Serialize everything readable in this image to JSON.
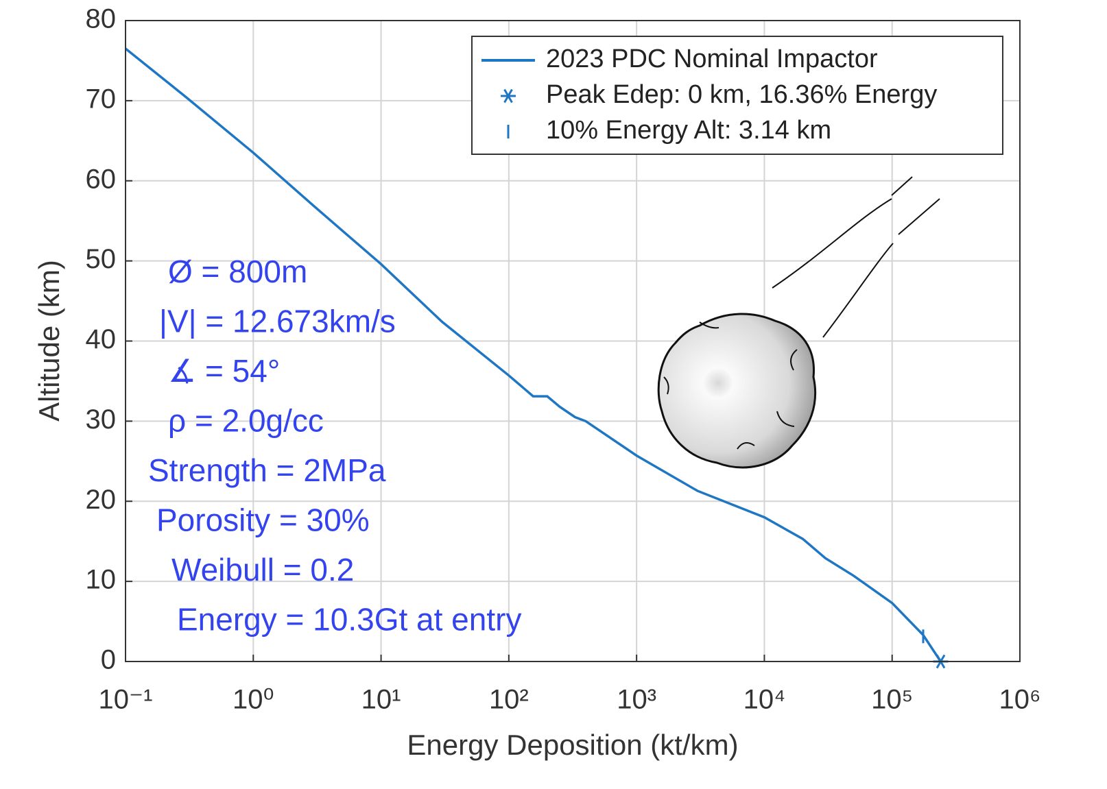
{
  "chart_data": {
    "type": "line",
    "xlabel": "Energy Deposition (kt/km)",
    "ylabel": "Altitude (km)",
    "xscale": "log",
    "xlim": [
      0.1,
      1000000
    ],
    "ylim": [
      0,
      80
    ],
    "xticks": [
      {
        "value": 0.1,
        "label": "10⁻¹"
      },
      {
        "value": 1,
        "label": "10⁰"
      },
      {
        "value": 10,
        "label": "10¹"
      },
      {
        "value": 100,
        "label": "10²"
      },
      {
        "value": 1000,
        "label": "10³"
      },
      {
        "value": 10000,
        "label": "10⁴"
      },
      {
        "value": 100000,
        "label": "10⁵"
      },
      {
        "value": 1000000,
        "label": "10⁶"
      }
    ],
    "yticks": [
      0,
      10,
      20,
      30,
      40,
      50,
      60,
      70,
      80
    ],
    "grid": true,
    "legend": "upper right",
    "series": [
      {
        "name": "2023 PDC Nominal Impactor",
        "color": "#1f77c4",
        "marker": "line",
        "x": [
          0.1,
          0.3,
          1,
          3,
          10,
          30,
          100,
          155,
          200,
          250,
          330,
          400,
          1000,
          3000,
          10000,
          20000,
          30000,
          50000,
          100000,
          175000,
          240000
        ],
        "values": [
          76.5,
          70.4,
          63.5,
          56.8,
          49.6,
          42.4,
          35.7,
          33.1,
          33.1,
          31.8,
          30.5,
          30,
          25.7,
          21.3,
          18,
          15.3,
          12.9,
          10.7,
          7.3,
          3.3,
          0
        ]
      },
      {
        "name": "Peak Edep: 0 km, 16.36% Energy",
        "color": "#1f77c4",
        "marker": "asterisk",
        "x": [
          240000
        ],
        "values": [
          0
        ]
      },
      {
        "name": "10% Energy Alt: 3.14 km",
        "color": "#1f77c4",
        "marker": "vline",
        "x": [
          175000
        ],
        "values": [
          3.14
        ]
      }
    ],
    "annotations": [
      "Ø = 800m",
      "|V| = 12.673km/s",
      "∡ = 54°",
      "ρ = 2.0g/cc",
      "Strength = 2MPa",
      "Porosity = 30%",
      "Weibull = 0.2",
      "Energy = 10.3Gt at entry"
    ]
  }
}
